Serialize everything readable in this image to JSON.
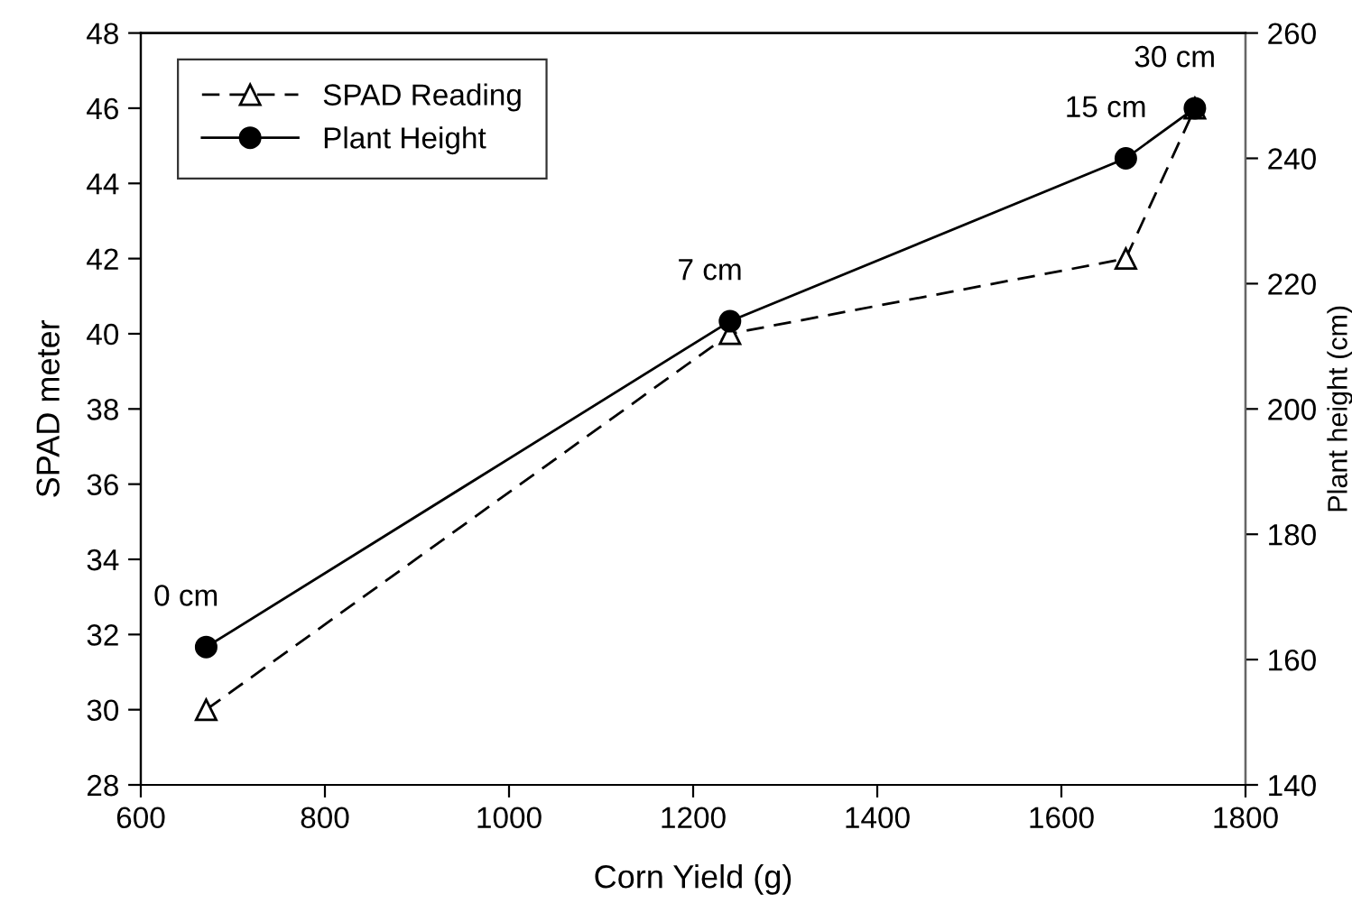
{
  "chart_data": {
    "type": "line",
    "xlabel": "Corn Yield (g)",
    "ylabel": "SPAD meter",
    "y2label": "Plant height (cm)",
    "xlim": [
      600,
      1800
    ],
    "xticks": [
      600,
      800,
      1000,
      1200,
      1400,
      1600,
      1800
    ],
    "ylim": [
      28,
      48
    ],
    "yticks": [
      28,
      30,
      32,
      34,
      36,
      38,
      40,
      42,
      44,
      46,
      48
    ],
    "y2lim": [
      140,
      260
    ],
    "y2ticks": [
      140,
      160,
      180,
      200,
      220,
      240,
      260
    ],
    "grid": false,
    "legend": "top left",
    "series": [
      {
        "name": "SPAD Reading",
        "color": "#000000",
        "marker": "triangle",
        "line_style": "dashed",
        "x": [
          671,
          1240,
          1670,
          1745
        ],
        "values": [
          30,
          40,
          42,
          46
        ]
      },
      {
        "name": "Plant Height",
        "color": "#000000",
        "marker": "circle",
        "line_style": "solid",
        "axis": "y2",
        "x": [
          671,
          1240,
          1670,
          1745
        ],
        "values": [
          162,
          214,
          240,
          248
        ]
      }
    ],
    "annotations": [
      "0 cm",
      "7 cm",
      "15 cm",
      "30 cm"
    ]
  }
}
